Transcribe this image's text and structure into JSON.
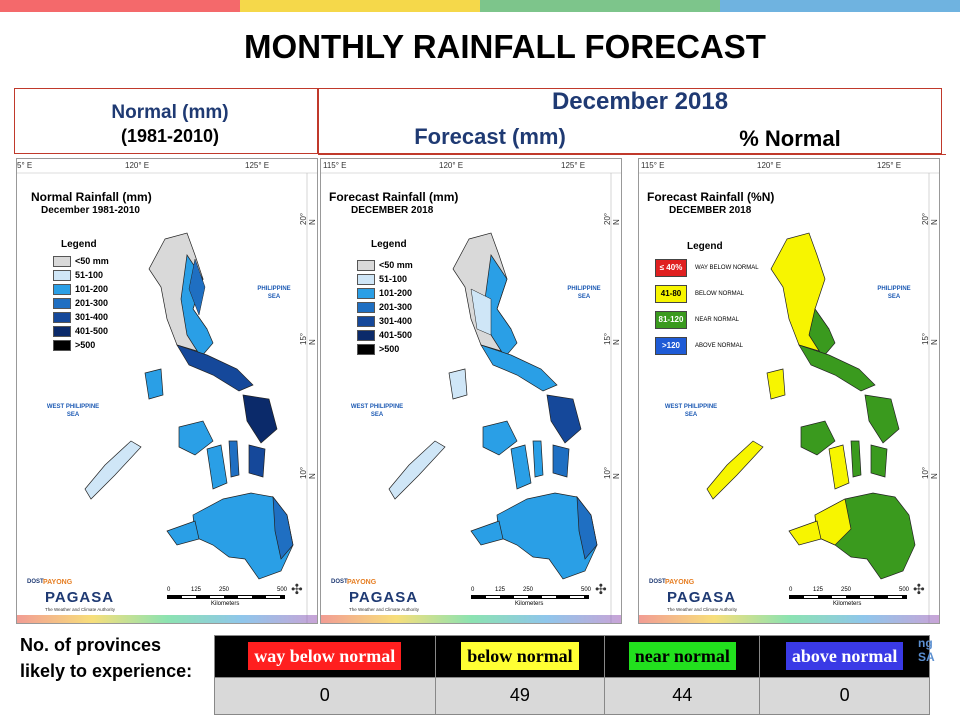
{
  "slide": {
    "title": "MONTHLY RAINFALL FORECAST",
    "top_bar_colors": [
      "#f4696b",
      "#f5d84a",
      "#7dc58b",
      "#6fb3e0"
    ]
  },
  "headers": {
    "normal_line1": "Normal (mm)",
    "normal_line2": "(1981-2010)",
    "month": "December 2018",
    "forecast": "Forecast (mm)",
    "percent": "% Normal"
  },
  "maps": {
    "coords_top": [
      "115° E",
      "120° E",
      "125° E"
    ],
    "coords_top_left_cut": "5° E",
    "coords_right": [
      "20° N",
      "15° N",
      "10° N"
    ],
    "sea_east": "PHILIPPINE\nSEA",
    "sea_west": "WEST PHILIPPINE\nSEA",
    "scale_ticks": [
      "0",
      "125",
      "250",
      "500"
    ],
    "scale_unit": "Kilometers",
    "logo": {
      "dost": "DOST",
      "payong": "PAYONG",
      "pagasa": "PAGASA",
      "tagline": "The Weather and Climate Authority"
    },
    "legend_title": "Legend",
    "normal_map": {
      "title": "Normal Rainfall (mm)",
      "subtitle": "December 1981-2010",
      "legend": [
        {
          "label": "<50 mm",
          "color": "#d9d9d9"
        },
        {
          "label": "51-100",
          "color": "#cfe6f7"
        },
        {
          "label": "101-200",
          "color": "#2a9fe6"
        },
        {
          "label": "201-300",
          "color": "#1f6fc2"
        },
        {
          "label": "301-400",
          "color": "#15489a"
        },
        {
          "label": "401-500",
          "color": "#0b2a6a"
        },
        {
          "label": ">500",
          "color": "#000000"
        }
      ]
    },
    "forecast_map": {
      "title": "Forecast Rainfall (mm)",
      "subtitle": "DECEMBER 2018",
      "legend": [
        {
          "label": "<50 mm",
          "color": "#d9d9d9"
        },
        {
          "label": "51-100",
          "color": "#cfe6f7"
        },
        {
          "label": "101-200",
          "color": "#2a9fe6"
        },
        {
          "label": "201-300",
          "color": "#1f6fc2"
        },
        {
          "label": "301-400",
          "color": "#15489a"
        },
        {
          "label": "401-500",
          "color": "#0b2a6a"
        },
        {
          "label": ">500",
          "color": "#000000"
        }
      ]
    },
    "percent_map": {
      "title": "Forecast Rainfall (%N)",
      "subtitle": "DECEMBER 2018",
      "legend": [
        {
          "swatch": "≤ 40%",
          "label": "WAY BELOW NORMAL",
          "color": "#e02020",
          "text_color": "#ffffff"
        },
        {
          "swatch": "41-80",
          "label": "BELOW NORMAL",
          "color": "#f7f500",
          "text_color": "#000000"
        },
        {
          "swatch": "81-120",
          "label": "NEAR NORMAL",
          "color": "#3a9a1e",
          "text_color": "#ffffff"
        },
        {
          "swatch": ">120",
          "label": "ABOVE NORMAL",
          "color": "#1e5bd6",
          "text_color": "#ffffff"
        }
      ]
    }
  },
  "provinces": {
    "label": "No. of provinces likely to experience:",
    "categories": [
      {
        "label": "way below normal",
        "bg": "#ff1f1f",
        "fg": "#ffffff",
        "count": "0"
      },
      {
        "label": "below normal",
        "bg": "#ffff33",
        "fg": "#000000",
        "count": "49"
      },
      {
        "label": "near normal",
        "bg": "#22e01e",
        "fg": "#000000",
        "count": "44"
      },
      {
        "label": "above normal",
        "bg": "#3a3ae6",
        "fg": "#ffffff",
        "count": "0"
      }
    ]
  },
  "side_logo_text": "ng\nSA"
}
